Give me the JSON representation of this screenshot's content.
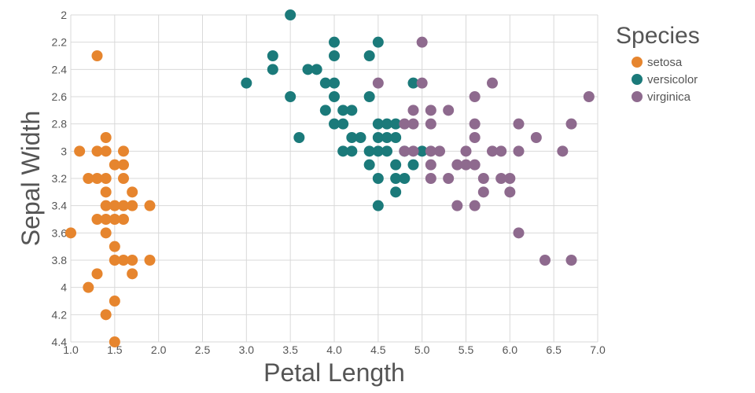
{
  "chart_data": {
    "type": "scatter",
    "xlabel": "Petal Length",
    "ylabel": "Sepal Width",
    "xlim": [
      1.0,
      7.0
    ],
    "ylim": [
      2.0,
      4.4
    ],
    "y_axis_inverted": true,
    "x_ticks": [
      "1.0",
      "1.5",
      "2.0",
      "2.5",
      "3.0",
      "3.5",
      "4.0",
      "4.5",
      "5.0",
      "5.5",
      "6.0",
      "6.5",
      "7.0"
    ],
    "y_ticks": [
      "2",
      "2.2",
      "2.4",
      "2.6",
      "2.8",
      "3",
      "3.2",
      "3.4",
      "3.6",
      "3.8",
      "4",
      "4.2",
      "4.4"
    ],
    "grid": true,
    "legend": {
      "title": "Species",
      "placement": "top-right"
    },
    "series": [
      {
        "name": "setosa",
        "color": "#e6852e",
        "points": [
          [
            1.3,
            2.3
          ],
          [
            1.1,
            3.0
          ],
          [
            1.3,
            3.0
          ],
          [
            1.4,
            3.0
          ],
          [
            1.6,
            3.0
          ],
          [
            1.4,
            2.9
          ],
          [
            1.5,
            3.1
          ],
          [
            1.6,
            3.1
          ],
          [
            1.2,
            3.2
          ],
          [
            1.3,
            3.2
          ],
          [
            1.4,
            3.2
          ],
          [
            1.6,
            3.2
          ],
          [
            1.4,
            3.3
          ],
          [
            1.7,
            3.3
          ],
          [
            1.4,
            3.4
          ],
          [
            1.5,
            3.4
          ],
          [
            1.6,
            3.4
          ],
          [
            1.7,
            3.4
          ],
          [
            1.9,
            3.4
          ],
          [
            1.3,
            3.5
          ],
          [
            1.4,
            3.5
          ],
          [
            1.5,
            3.5
          ],
          [
            1.6,
            3.5
          ],
          [
            1.0,
            3.6
          ],
          [
            1.4,
            3.6
          ],
          [
            1.5,
            3.7
          ],
          [
            1.5,
            3.8
          ],
          [
            1.6,
            3.8
          ],
          [
            1.7,
            3.8
          ],
          [
            1.9,
            3.8
          ],
          [
            1.3,
            3.9
          ],
          [
            1.7,
            3.9
          ],
          [
            1.2,
            4.0
          ],
          [
            1.5,
            4.1
          ],
          [
            1.4,
            4.2
          ],
          [
            1.5,
            4.4
          ]
        ]
      },
      {
        "name": "versicolor",
        "color": "#1b7a7a",
        "points": [
          [
            3.5,
            2.0
          ],
          [
            4.0,
            2.2
          ],
          [
            4.5,
            2.2
          ],
          [
            3.3,
            2.3
          ],
          [
            4.0,
            2.3
          ],
          [
            4.4,
            2.3
          ],
          [
            3.3,
            2.4
          ],
          [
            3.7,
            2.4
          ],
          [
            3.8,
            2.4
          ],
          [
            3.0,
            2.5
          ],
          [
            3.9,
            2.5
          ],
          [
            4.0,
            2.5
          ],
          [
            4.9,
            2.5
          ],
          [
            3.5,
            2.6
          ],
          [
            4.0,
            2.6
          ],
          [
            4.4,
            2.6
          ],
          [
            3.9,
            2.7
          ],
          [
            4.1,
            2.7
          ],
          [
            4.2,
            2.7
          ],
          [
            4.0,
            2.8
          ],
          [
            4.1,
            2.8
          ],
          [
            4.5,
            2.8
          ],
          [
            4.6,
            2.8
          ],
          [
            4.7,
            2.8
          ],
          [
            3.6,
            2.9
          ],
          [
            4.2,
            2.9
          ],
          [
            4.3,
            2.9
          ],
          [
            4.5,
            2.9
          ],
          [
            4.6,
            2.9
          ],
          [
            4.7,
            2.9
          ],
          [
            4.1,
            3.0
          ],
          [
            4.2,
            3.0
          ],
          [
            4.4,
            3.0
          ],
          [
            4.5,
            3.0
          ],
          [
            4.6,
            3.0
          ],
          [
            4.8,
            3.0
          ],
          [
            5.0,
            3.0
          ],
          [
            4.4,
            3.1
          ],
          [
            4.7,
            3.1
          ],
          [
            4.9,
            3.1
          ],
          [
            4.5,
            3.2
          ],
          [
            4.7,
            3.2
          ],
          [
            4.8,
            3.2
          ],
          [
            4.7,
            3.3
          ],
          [
            4.5,
            3.4
          ]
        ]
      },
      {
        "name": "virginica",
        "color": "#8e6a8e",
        "points": [
          [
            5.0,
            2.2
          ],
          [
            4.5,
            2.5
          ],
          [
            5.0,
            2.5
          ],
          [
            5.8,
            2.5
          ],
          [
            5.6,
            2.6
          ],
          [
            6.9,
            2.6
          ],
          [
            4.9,
            2.7
          ],
          [
            5.1,
            2.7
          ],
          [
            5.3,
            2.7
          ],
          [
            4.8,
            2.8
          ],
          [
            4.9,
            2.8
          ],
          [
            5.1,
            2.8
          ],
          [
            5.6,
            2.8
          ],
          [
            6.1,
            2.8
          ],
          [
            6.7,
            2.8
          ],
          [
            5.6,
            2.9
          ],
          [
            6.3,
            2.9
          ],
          [
            4.8,
            3.0
          ],
          [
            4.9,
            3.0
          ],
          [
            5.1,
            3.0
          ],
          [
            5.2,
            3.0
          ],
          [
            5.5,
            3.0
          ],
          [
            5.8,
            3.0
          ],
          [
            5.9,
            3.0
          ],
          [
            6.1,
            3.0
          ],
          [
            6.6,
            3.0
          ],
          [
            5.1,
            3.1
          ],
          [
            5.4,
            3.1
          ],
          [
            5.5,
            3.1
          ],
          [
            5.6,
            3.1
          ],
          [
            5.1,
            3.2
          ],
          [
            5.3,
            3.2
          ],
          [
            5.7,
            3.2
          ],
          [
            5.9,
            3.2
          ],
          [
            6.0,
            3.2
          ],
          [
            5.7,
            3.3
          ],
          [
            6.0,
            3.3
          ],
          [
            5.4,
            3.4
          ],
          [
            5.6,
            3.4
          ],
          [
            6.1,
            3.6
          ],
          [
            6.4,
            3.8
          ],
          [
            6.7,
            3.8
          ]
        ]
      }
    ]
  }
}
